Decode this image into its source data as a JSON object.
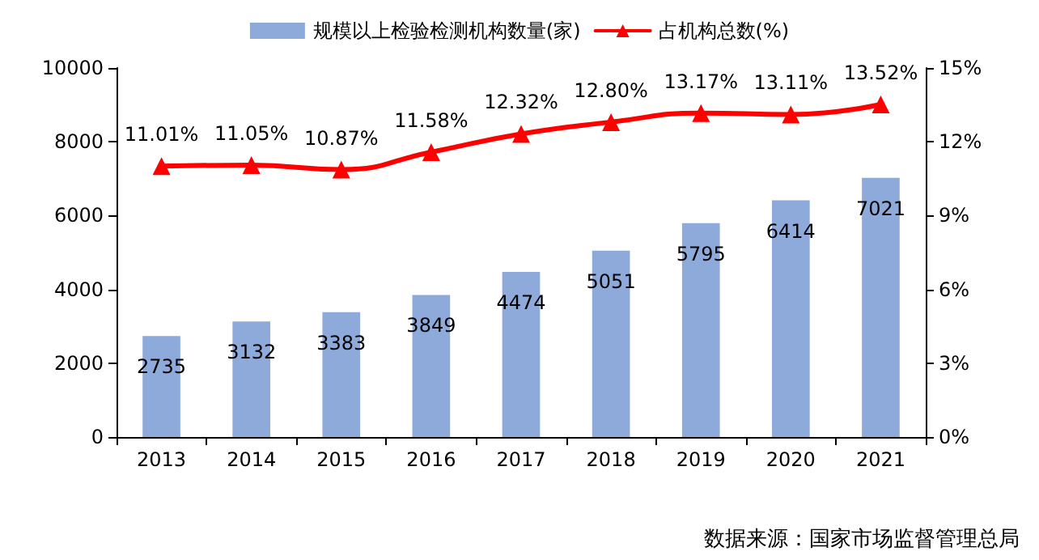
{
  "chart_data": {
    "type": "bar",
    "categories": [
      "2013",
      "2014",
      "2015",
      "2016",
      "2017",
      "2018",
      "2019",
      "2020",
      "2021"
    ],
    "series": [
      {
        "name": "规模以上检验检测机构数量(家)",
        "color": "#8eaadb",
        "values": [
          2735,
          3132,
          3383,
          3849,
          4474,
          5051,
          5795,
          6414,
          7021
        ],
        "value_labels": [
          "2735",
          "3132",
          "3383",
          "3849",
          "4474",
          "5051",
          "5795",
          "6414",
          "7021"
        ]
      },
      {
        "name": "占机构总数(%)",
        "type": "line",
        "axis": "y2",
        "color": "#ff0000",
        "values": [
          11.01,
          11.05,
          10.87,
          11.58,
          12.32,
          12.8,
          13.17,
          13.11,
          13.52
        ],
        "value_labels": [
          "11.01%",
          "11.05%",
          "10.87%",
          "11.58%",
          "12.32%",
          "12.80%",
          "13.17%",
          "13.11%",
          "13.52%"
        ]
      }
    ],
    "ylim": [
      0,
      10000
    ],
    "yticks": [
      0,
      2000,
      4000,
      6000,
      8000,
      10000
    ],
    "y2lim": [
      0,
      15
    ],
    "y2ticks": [
      {
        "value": 0,
        "label": "0%"
      },
      {
        "value": 3,
        "label": "3%"
      },
      {
        "value": 6,
        "label": "6%"
      },
      {
        "value": 9,
        "label": "9%"
      },
      {
        "value": 12,
        "label": "12%"
      },
      {
        "value": 15,
        "label": "15%"
      }
    ],
    "legend": "top",
    "marker": "triangle",
    "line_style": "solid",
    "grid": false,
    "annotations": [
      "数据来源：国家市场监督管理总局"
    ]
  }
}
